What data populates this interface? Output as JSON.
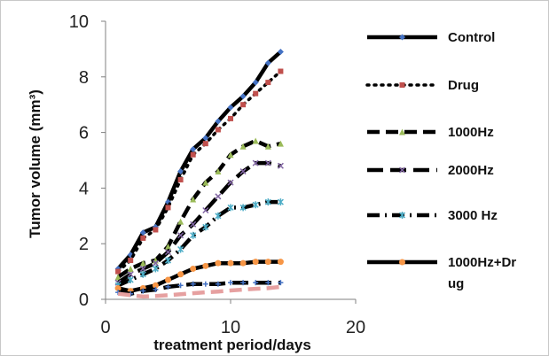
{
  "chart_data": {
    "type": "line",
    "title": "",
    "xlabel": "treatment period/days",
    "ylabel": "Tumor volume (mm³)",
    "xlim": [
      0,
      20
    ],
    "ylim": [
      0,
      10
    ],
    "x_ticks": [
      0,
      10,
      20
    ],
    "y_ticks": [
      0,
      2,
      4,
      6,
      8,
      10
    ],
    "grid": false,
    "legend_position": "right",
    "series": [
      {
        "name": "Control",
        "color": "#4472C4",
        "marker": "diamond",
        "dash": "solid",
        "x": [
          1,
          2,
          3,
          4,
          5,
          6,
          7,
          8,
          9,
          10,
          11,
          12,
          13,
          14
        ],
        "y": [
          1.1,
          1.6,
          2.4,
          2.6,
          3.5,
          4.6,
          5.4,
          5.8,
          6.4,
          6.9,
          7.3,
          7.8,
          8.5,
          8.9
        ]
      },
      {
        "name": "Drug",
        "color": "#C0504D",
        "marker": "square",
        "dash": "dot",
        "x": [
          1,
          2,
          3,
          4,
          5,
          6,
          7,
          8,
          9,
          10,
          11,
          12,
          13,
          14
        ],
        "y": [
          1.0,
          1.4,
          2.2,
          2.5,
          3.3,
          4.3,
          5.2,
          5.6,
          6.1,
          6.5,
          7.0,
          7.4,
          7.8,
          8.2
        ]
      },
      {
        "name": "1000Hz",
        "color": "#9BBB59",
        "marker": "triangle",
        "dash": "dash",
        "x": [
          1,
          2,
          3,
          4,
          5,
          6,
          7,
          8,
          9,
          10,
          11,
          12,
          13,
          14
        ],
        "y": [
          0.8,
          1.1,
          1.3,
          1.4,
          1.9,
          2.8,
          3.6,
          4.2,
          4.6,
          5.2,
          5.5,
          5.7,
          5.5,
          5.6
        ]
      },
      {
        "name": "2000Hz",
        "color": "#8064A2",
        "marker": "x",
        "dash": "longdash",
        "x": [
          1,
          2,
          3,
          4,
          5,
          6,
          7,
          8,
          9,
          10,
          11,
          12,
          13,
          14
        ],
        "y": [
          0.6,
          0.9,
          1.1,
          1.3,
          1.7,
          2.3,
          2.7,
          3.2,
          3.7,
          4.2,
          4.6,
          4.9,
          4.9,
          4.8
        ]
      },
      {
        "name": "3000 Hz",
        "color": "#4BACC6",
        "marker": "star",
        "dash": "dashdot",
        "x": [
          1,
          2,
          3,
          4,
          5,
          6,
          7,
          8,
          9,
          10,
          11,
          12,
          13,
          14
        ],
        "y": [
          0.5,
          0.7,
          0.9,
          1.1,
          1.4,
          1.8,
          2.3,
          2.6,
          3.0,
          3.3,
          3.3,
          3.4,
          3.5,
          3.5
        ]
      },
      {
        "name": "1000Hz+Drug",
        "color": "#F79646",
        "marker": "circle",
        "dash": "solid",
        "x": [
          1,
          2,
          3,
          4,
          5,
          6,
          7,
          8,
          9,
          10,
          11,
          12,
          13,
          14
        ],
        "y": [
          0.4,
          0.3,
          0.4,
          0.5,
          0.7,
          0.9,
          1.1,
          1.2,
          1.3,
          1.3,
          1.3,
          1.35,
          1.35,
          1.35
        ]
      },
      {
        "name": "",
        "color": "#4472C4",
        "marker": "plus",
        "dash": "longdash",
        "x": [
          1,
          2,
          3,
          4,
          5,
          6,
          7,
          8,
          9,
          10,
          11,
          12,
          13,
          14
        ],
        "y": [
          0.25,
          0.2,
          0.3,
          0.35,
          0.45,
          0.5,
          0.55,
          0.55,
          0.55,
          0.6,
          0.6,
          0.6,
          0.6,
          0.6
        ]
      },
      {
        "name": "",
        "color": "#E6A0A0",
        "marker": "none",
        "dash": "dash",
        "x": [
          1,
          2,
          3,
          4,
          5,
          6,
          7,
          8,
          9,
          10,
          11,
          12,
          13,
          14
        ],
        "y": [
          0.2,
          0.15,
          0.1,
          0.12,
          0.15,
          0.18,
          0.22,
          0.25,
          0.28,
          0.32,
          0.35,
          0.38,
          0.4,
          0.45
        ]
      }
    ]
  },
  "legend": {
    "entries": [
      "Control",
      "Drug",
      "1000Hz",
      "2000Hz",
      "3000 Hz",
      "1000Hz+Dr\nug"
    ]
  }
}
